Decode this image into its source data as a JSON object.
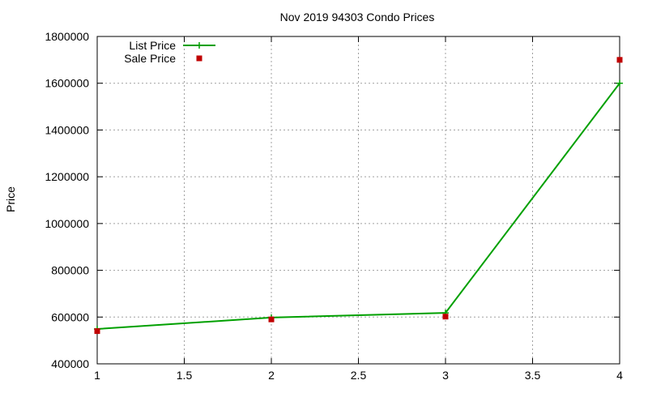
{
  "chart_data": {
    "type": "line",
    "title": "Nov 2019 94303 Condo Prices",
    "xlabel": "",
    "ylabel": "Price",
    "xlim": [
      1,
      4
    ],
    "ylim": [
      400000,
      1800000
    ],
    "x_ticks": [
      "1",
      "1.5",
      "2",
      "2.5",
      "3",
      "3.5",
      "4"
    ],
    "y_ticks": [
      "400000",
      "600000",
      "800000",
      "1000000",
      "1200000",
      "1400000",
      "1600000",
      "1800000"
    ],
    "grid": true,
    "legend_position": "top-left",
    "series": [
      {
        "name": "List Price",
        "style": "linespoints",
        "marker": "plus",
        "color": "#00a000",
        "points": [
          [
            1,
            549000
          ],
          [
            2,
            598000
          ],
          [
            3,
            618000
          ],
          [
            4,
            1600000
          ]
        ]
      },
      {
        "name": "Sale Price",
        "style": "points",
        "marker": "square",
        "color": "#c00000",
        "points": [
          [
            1,
            540000
          ],
          [
            2,
            590000
          ],
          [
            3,
            602000
          ],
          [
            4,
            1700000
          ]
        ]
      }
    ]
  }
}
